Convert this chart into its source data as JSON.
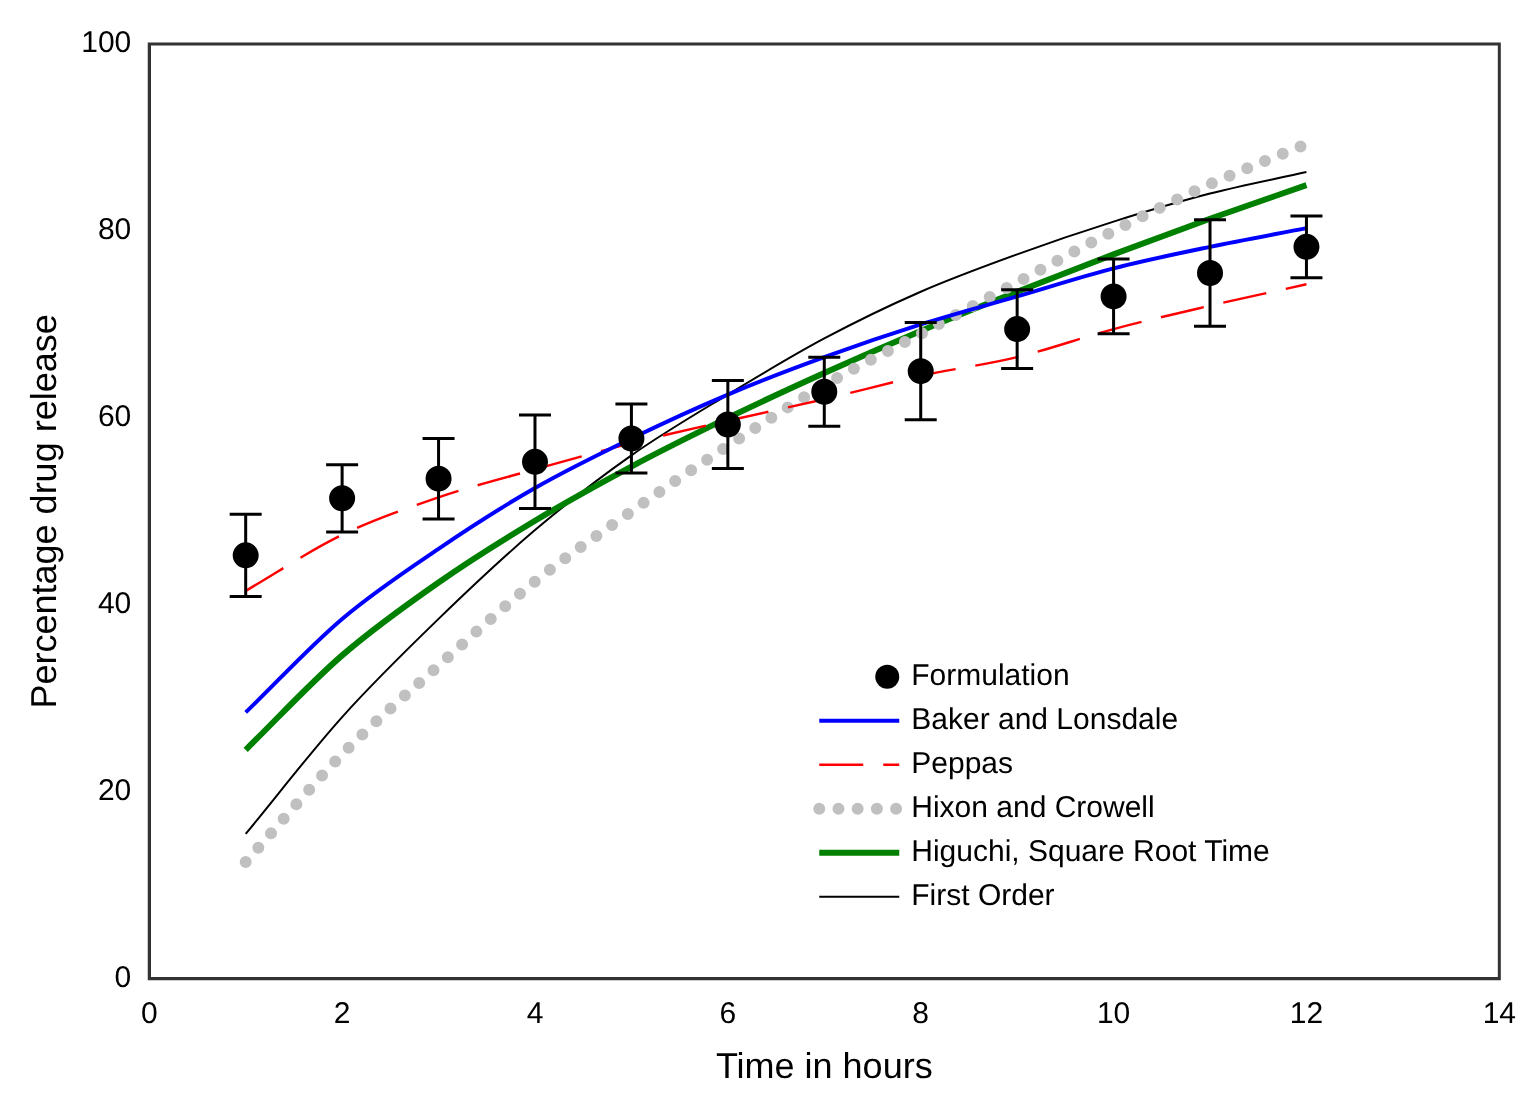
{
  "chart_data": {
    "type": "line",
    "xlabel": "Time in hours",
    "ylabel": "Percentage drug release",
    "x": [
      1,
      2,
      3,
      4,
      5,
      6,
      7,
      8,
      9,
      10,
      11,
      12
    ],
    "xlim": [
      0,
      14
    ],
    "xticks": [
      0,
      2,
      4,
      6,
      8,
      10,
      12,
      14
    ],
    "ylim": [
      0,
      100
    ],
    "yticks": [
      0,
      20,
      40,
      60,
      80,
      100
    ],
    "grid": false,
    "legend": "bottom right",
    "series": [
      {
        "name": "Formulation",
        "type": "scatter",
        "color": "#000000",
        "marker": "circle",
        "values": [
          45.3,
          51.4,
          53.5,
          55.3,
          57.8,
          59.3,
          62.8,
          65.0,
          69.5,
          73.0,
          75.5,
          78.3
        ],
        "errors": [
          4.4,
          3.6,
          4.3,
          5,
          3.7,
          4.7,
          3.7,
          5.2,
          4.2,
          4,
          5.7,
          3.3
        ]
      },
      {
        "name": "Baker and Lonsdale",
        "color": "#0000ff",
        "line_style": "solid",
        "values": [
          28.5,
          38.5,
          46,
          52.5,
          57.8,
          62.5,
          66.5,
          70,
          73,
          76,
          78.3,
          80.3
        ]
      },
      {
        "name": "Peppas",
        "color": "#ff0000",
        "line_style": "dashed",
        "values": [
          41.5,
          47.5,
          51.5,
          54.5,
          57.3,
          59.7,
          62,
          64.5,
          66.5,
          69.5,
          72,
          74.3
        ]
      },
      {
        "name": "Hixon and Crowell",
        "color": "#c0c0c0",
        "line_style": "dotted",
        "values": [
          12.5,
          24,
          33.5,
          42.5,
          50,
          57,
          63.5,
          69,
          74.5,
          80,
          85,
          89.3
        ]
      },
      {
        "name": "Higuchi, Square Root Time",
        "color": "#008000",
        "line_style": "solid",
        "values": [
          24.5,
          34.6,
          42.4,
          49,
          54.8,
          60,
          64.8,
          69.3,
          73.5,
          77.5,
          81.3,
          84.9
        ]
      },
      {
        "name": "First Order",
        "color": "#000000",
        "line_style": "solid",
        "values": [
          15.5,
          28,
          38.5,
          48,
          56,
          62.5,
          68.5,
          73.5,
          77.5,
          81,
          84,
          86.3
        ]
      }
    ]
  }
}
